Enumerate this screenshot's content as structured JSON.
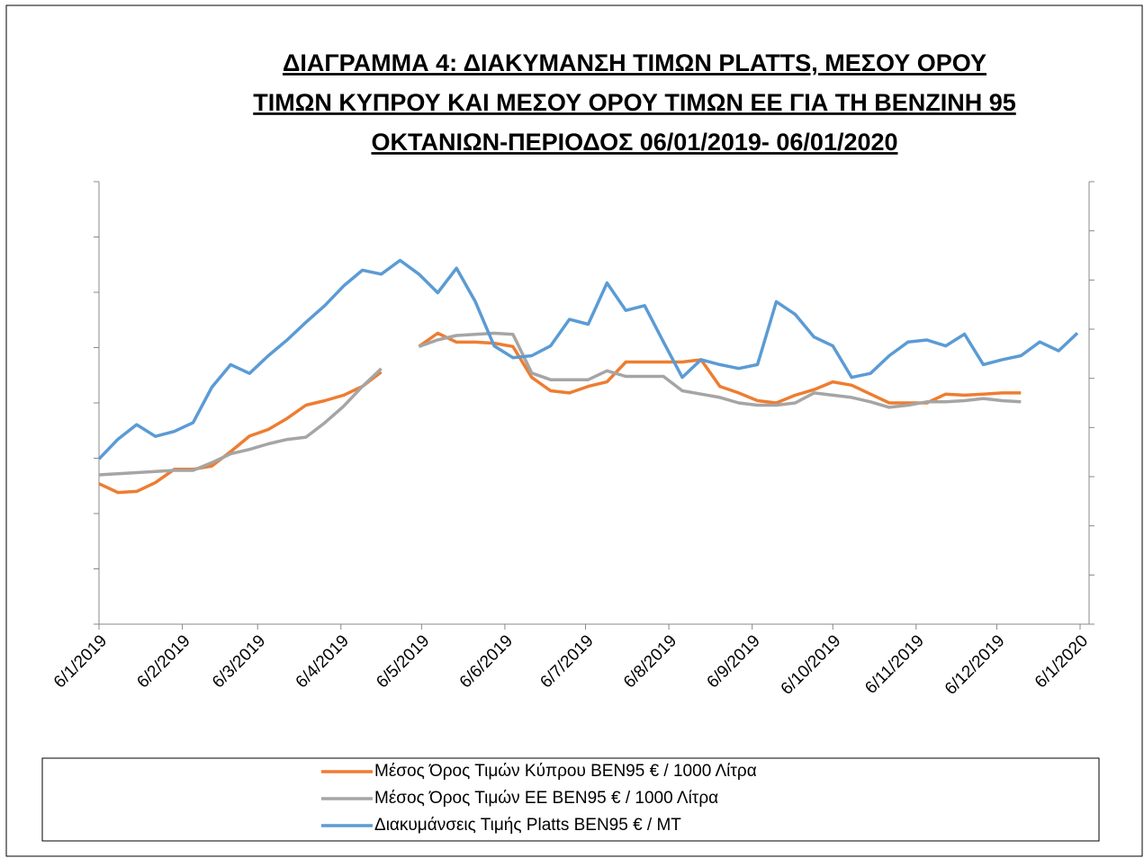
{
  "chart_data": {
    "type": "line",
    "title": [
      "ΔΙΑΓΡΑΜΜΑ 4: ΔΙΑΚΥΜΑΝΣΗ ΤΙΜΩΝ PLATTS, ΜΕΣΟΥ ΟΡΟΥ",
      "ΤΙΜΩΝ ΚΥΠΡΟΥ ΚΑΙ ΜΕΣΟΥ ΟΡΟΥ ΤΙΜΩΝ ΕΕ ΓΙΑ ΤΗ ΒΕΝΖΙΝΗ 95",
      "ΟΚΤΑΝΙΩΝ-ΠΕΡΙΟΔΟΣ  06/01/2019- 06/01/2020"
    ],
    "x": [
      "6/1/2019",
      "13/1/2019",
      "20/1/2019",
      "27/1/2019",
      "3/2/2019",
      "10/2/2019",
      "17/2/2019",
      "24/2/2019",
      "3/3/2019",
      "10/3/2019",
      "17/3/2019",
      "24/3/2019",
      "31/3/2019",
      "7/4/2019",
      "14/4/2019",
      "21/4/2019",
      "28/4/2019",
      "5/5/2019",
      "12/5/2019",
      "19/5/2019",
      "26/5/2019",
      "2/6/2019",
      "9/6/2019",
      "16/6/2019",
      "23/6/2019",
      "30/6/2019",
      "7/7/2019",
      "14/7/2019",
      "21/7/2019",
      "28/7/2019",
      "4/8/2019",
      "11/8/2019",
      "18/8/2019",
      "25/8/2019",
      "1/9/2019",
      "8/9/2019",
      "15/9/2019",
      "22/9/2019",
      "29/9/2019",
      "6/10/2019",
      "13/10/2019",
      "20/10/2019",
      "27/10/2019",
      "3/11/2019",
      "10/11/2019",
      "17/11/2019",
      "24/11/2019",
      "1/12/2019",
      "8/12/2019",
      "15/12/2019",
      "22/12/2019",
      "29/12/2019",
      "5/1/2020"
    ],
    "xlim": [
      "6/1/2019",
      "6/1/2020"
    ],
    "xticks": [
      "6/1/2019",
      "6/2/2019",
      "6/3/2019",
      "6/4/2019",
      "6/5/2019",
      "6/6/2019",
      "6/7/2019",
      "6/8/2019",
      "6/9/2019",
      "6/10/2019",
      "6/11/2019",
      "6/12/2019",
      "6/1/2020"
    ],
    "ylim": [
      1050,
      1450
    ],
    "yticks": [
      1050,
      1100,
      1150,
      1200,
      1250,
      1300,
      1350,
      1400,
      1450
    ],
    "y2lim": [
      300,
      750
    ],
    "y2ticks": [
      300,
      350,
      400,
      450,
      500,
      550,
      600,
      650,
      700,
      750
    ],
    "series": [
      {
        "name": "Μέσος Όρος Τιμών Κύπρου ΒΕΝ95 € / 1000 Λίτρα",
        "color": "#ed7d31",
        "values": [
          1177,
          1169,
          1170,
          1178,
          1190,
          1190,
          1193,
          1206,
          1220,
          1226,
          1236,
          1248,
          1252,
          1257,
          1265,
          1278,
          null,
          1301,
          1313,
          1305,
          1305,
          1304,
          1301,
          1273,
          1261,
          1259,
          1265,
          1269,
          1287,
          1287,
          1287,
          1287,
          1289,
          1265,
          1259,
          1252,
          1250,
          1257,
          1262,
          1269,
          1266,
          1258,
          1250,
          1250,
          1250,
          1258,
          1257,
          1258,
          1259,
          1259,
          null,
          null,
          null
        ]
      },
      {
        "name": "Μέσος Όρος Τιμών ΕΕ ΒΕΝ95 € / 1000 Λίτρα",
        "color": "#a5a5a5",
        "values": [
          1185,
          1186,
          1187,
          1188,
          1189,
          1189,
          1196,
          1204,
          1208,
          1213,
          1217,
          1219,
          1232,
          1247,
          1265,
          1281,
          null,
          1301,
          1307,
          1311,
          1312,
          1313,
          1312,
          1277,
          1271,
          1271,
          1271,
          1279,
          1274,
          1274,
          1274,
          1261,
          1258,
          1255,
          1250,
          1248,
          1248,
          1250,
          1259,
          1257,
          1255,
          1251,
          1246,
          1248,
          1251,
          1251,
          1252,
          1254,
          1252,
          1251,
          null,
          null,
          null
        ]
      },
      {
        "name": "Διακυμάνσεις Τιμής Platts ΒΕΝ95 € / ΜΤ",
        "color": "#5b9bd5",
        "axis": "y2",
        "values": [
          468,
          488,
          503,
          491,
          496,
          505,
          541,
          564,
          555,
          573,
          589,
          607,
          624,
          644,
          660,
          656,
          670,
          656,
          637,
          662,
          628,
          583,
          571,
          573,
          583,
          610,
          605,
          647,
          619,
          624,
          587,
          551,
          569,
          564,
          560,
          564,
          628,
          615,
          592,
          583,
          551,
          555,
          573,
          587,
          589,
          583,
          595,
          564,
          569,
          573,
          587,
          578,
          596
        ]
      }
    ]
  }
}
